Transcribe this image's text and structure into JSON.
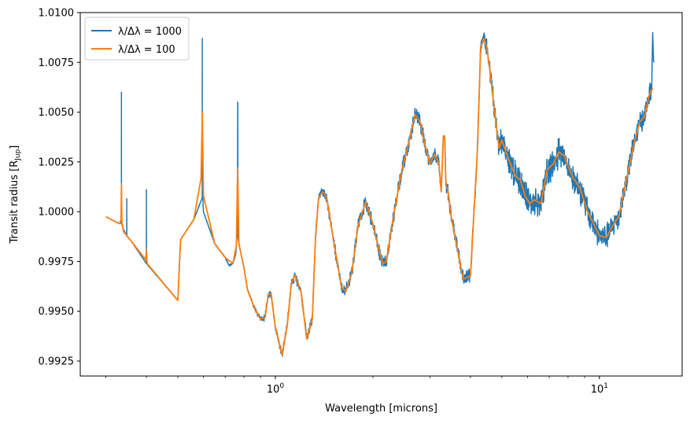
{
  "chart_data": {
    "type": "line",
    "title": "",
    "xlabel": "Wavelength [microns]",
    "ylabel": {
      "main": "Transit radius [R",
      "sub": "Jup",
      "end": "]"
    },
    "xscale": "log",
    "xlim": [
      0.25,
      18
    ],
    "ylim": [
      0.99175,
      1.01
    ],
    "yticks": [
      0.9925,
      0.995,
      0.9975,
      1.0,
      1.0025,
      1.005,
      1.0075,
      1.01
    ],
    "ytick_labels": [
      "0.9925",
      "0.9950",
      "0.9975",
      "1.0000",
      "1.0025",
      "1.0050",
      "1.0075",
      "1.0100"
    ],
    "xticks_major": [
      1,
      10
    ],
    "xtick_labels": [
      {
        "base": "10",
        "exp": "0"
      },
      {
        "base": "10",
        "exp": "1"
      }
    ],
    "xticks_minor": [
      0.3,
      0.4,
      0.5,
      0.6,
      0.7,
      0.8,
      0.9,
      2,
      3,
      4,
      5,
      6,
      7,
      8,
      9
    ],
    "grid": false,
    "legend": {
      "position": "top-left"
    },
    "series": [
      {
        "name": "λ/Δλ = 1000",
        "color": "#1f77b4",
        "noise": [
          [
            0.3,
            0.0
          ],
          [
            0.82,
            5e-05
          ],
          [
            0.92,
            0.0002
          ],
          [
            1.3,
            0.0003
          ],
          [
            2.4,
            0.00045
          ],
          [
            4.2,
            0.0004
          ],
          [
            5.0,
            0.0008
          ],
          [
            6.5,
            0.0009
          ],
          [
            9.0,
            0.0008
          ],
          [
            14.5,
            0.0006
          ]
        ],
        "x": [
          0.3,
          0.33,
          0.3349,
          0.335,
          0.3351,
          0.338,
          0.3479,
          0.348,
          0.3481,
          0.36,
          0.3999,
          0.4,
          0.4001,
          0.5,
          0.51,
          0.56,
          0.5948,
          0.595,
          0.5952,
          0.6,
          0.65,
          0.7,
          0.72,
          0.74,
          0.755,
          0.764,
          0.7656,
          0.766,
          0.7664,
          0.772,
          0.8,
          0.82,
          0.86,
          0.9,
          0.93,
          0.95,
          0.97,
          1.0,
          1.05,
          1.09,
          1.12,
          1.15,
          1.2,
          1.25,
          1.3,
          1.33,
          1.36,
          1.4,
          1.44,
          1.5,
          1.6,
          1.65,
          1.72,
          1.8,
          1.9,
          2.0,
          2.1,
          2.15,
          2.2,
          2.3,
          2.45,
          2.6,
          2.7,
          2.8,
          2.9,
          3.0,
          3.1,
          3.2,
          3.25,
          3.3,
          3.33,
          3.36,
          3.4,
          3.5,
          3.65,
          3.8,
          4.0,
          4.2,
          4.3,
          4.4,
          4.5,
          4.6,
          4.75,
          4.9,
          5.0,
          5.2,
          5.5,
          5.7,
          5.9,
          6.1,
          6.3,
          6.6,
          6.9,
          7.2,
          7.5,
          7.8,
          8.0,
          8.3,
          8.7,
          9.2,
          10.0,
          10.5,
          11.0,
          11.5,
          12.0,
          12.7,
          13.3,
          13.8,
          14.2,
          14.5,
          14.6,
          14.7
        ],
        "y": [
          0.99975,
          0.9994,
          0.99945,
          1.006,
          0.99945,
          0.9992,
          0.99878,
          1.00065,
          0.99878,
          0.9985,
          0.9974,
          1.0011,
          0.9974,
          0.99555,
          0.9986,
          0.9996,
          1.0007,
          1.0087,
          1.0012,
          1.0,
          0.9984,
          0.9977,
          0.9973,
          0.9974,
          0.9979,
          0.9992,
          1.0055,
          1.0055,
          0.9987,
          0.9984,
          0.9972,
          0.9961,
          0.9952,
          0.9946,
          0.9947,
          0.9958,
          0.9959,
          0.9942,
          0.9928,
          0.9944,
          0.9964,
          0.9968,
          0.996,
          0.9936,
          0.9946,
          0.9987,
          1.0007,
          1.001,
          1.0007,
          0.9989,
          0.9962,
          0.996,
          0.9969,
          0.9993,
          1.0005,
          0.9994,
          0.9979,
          0.9974,
          0.9975,
          0.9995,
          1.002,
          1.0037,
          1.0049,
          1.0045,
          1.0033,
          1.0024,
          1.0029,
          1.0024,
          1.001,
          1.0038,
          1.0038,
          1.0013,
          1.0012,
          0.9996,
          0.9981,
          0.9966,
          0.9968,
          1.003,
          1.0083,
          1.0087,
          1.0082,
          1.007,
          1.005,
          1.0032,
          1.0036,
          1.0028,
          1.0018,
          1.0016,
          1.0008,
          1.0004,
          1.0006,
          1.0004,
          1.0021,
          1.0024,
          1.003,
          1.0028,
          1.0023,
          1.0017,
          1.0012,
          1.0,
          0.9988,
          0.9987,
          0.9993,
          0.9998,
          1.0013,
          1.0032,
          1.0045,
          1.0048,
          1.0058,
          1.0062,
          1.009,
          1.0075
        ]
      },
      {
        "name": "λ/Δλ = 100",
        "color": "#ff7f0e",
        "x": [
          0.3,
          0.33,
          0.334,
          0.335,
          0.336,
          0.34,
          0.36,
          0.398,
          0.4,
          0.402,
          0.5,
          0.51,
          0.56,
          0.59,
          0.595,
          0.6,
          0.65,
          0.7,
          0.74,
          0.758,
          0.765,
          0.772,
          0.79,
          0.8,
          0.82,
          0.86,
          0.9,
          0.93,
          0.95,
          0.97,
          1.0,
          1.05,
          1.09,
          1.12,
          1.15,
          1.2,
          1.25,
          1.3,
          1.33,
          1.36,
          1.4,
          1.44,
          1.5,
          1.6,
          1.65,
          1.72,
          1.8,
          1.9,
          2.0,
          2.1,
          2.15,
          2.2,
          2.3,
          2.45,
          2.6,
          2.7,
          2.8,
          2.9,
          3.0,
          3.1,
          3.2,
          3.25,
          3.3,
          3.33,
          3.36,
          3.4,
          3.5,
          3.65,
          3.8,
          4.0,
          4.2,
          4.3,
          4.4,
          4.5,
          4.6,
          4.75,
          4.9,
          5.0,
          5.2,
          5.5,
          5.7,
          5.9,
          6.1,
          6.3,
          6.6,
          6.9,
          7.2,
          7.5,
          7.8,
          8.0,
          8.3,
          8.7,
          9.2,
          10.0,
          10.5,
          11.0,
          11.5,
          12.0,
          12.7,
          13.3,
          13.8,
          14.2,
          14.6
        ],
        "y": [
          0.99975,
          0.9994,
          0.9996,
          1.0014,
          0.9995,
          0.999,
          0.9985,
          0.9976,
          0.9981,
          0.9974,
          0.99555,
          0.9986,
          0.9996,
          1.0017,
          1.005,
          1.0008,
          0.9984,
          0.9977,
          0.9974,
          0.9983,
          1.0022,
          0.9984,
          0.9976,
          0.9972,
          0.9961,
          0.9952,
          0.9946,
          0.9947,
          0.9958,
          0.9959,
          0.9942,
          0.9928,
          0.9944,
          0.9964,
          0.9968,
          0.996,
          0.9936,
          0.9946,
          0.9987,
          1.0007,
          1.001,
          1.0007,
          0.9989,
          0.9962,
          0.996,
          0.9969,
          0.9993,
          1.0005,
          0.9994,
          0.9979,
          0.9974,
          0.9975,
          0.9995,
          1.002,
          1.0037,
          1.0049,
          1.0045,
          1.0033,
          1.0024,
          1.0029,
          1.0024,
          1.001,
          1.0038,
          1.0038,
          1.0013,
          1.0012,
          0.9996,
          0.9981,
          0.9966,
          0.9968,
          1.003,
          1.0083,
          1.0087,
          1.0082,
          1.007,
          1.005,
          1.0032,
          1.0036,
          1.0028,
          1.0018,
          1.0016,
          1.0008,
          1.0004,
          1.0006,
          1.0004,
          1.0021,
          1.0024,
          1.003,
          1.0028,
          1.0023,
          1.0017,
          1.0012,
          1.0,
          0.9988,
          0.9987,
          0.9993,
          0.9998,
          1.0013,
          1.0032,
          1.0045,
          1.0048,
          1.0058,
          1.0062
        ]
      }
    ]
  }
}
